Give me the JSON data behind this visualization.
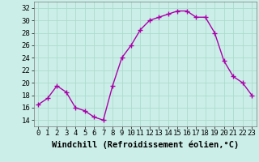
{
  "x": [
    0,
    1,
    2,
    3,
    4,
    5,
    6,
    7,
    8,
    9,
    10,
    11,
    12,
    13,
    14,
    15,
    16,
    17,
    18,
    19,
    20,
    21,
    22,
    23
  ],
  "y": [
    16.5,
    17.5,
    19.5,
    18.5,
    16.0,
    15.5,
    14.5,
    14.0,
    19.5,
    24.0,
    26.0,
    28.5,
    30.0,
    30.5,
    31.0,
    31.5,
    31.5,
    30.5,
    30.5,
    28.0,
    23.5,
    21.0,
    20.0,
    18.0
  ],
  "line_color": "#aa00aa",
  "marker": "+",
  "marker_size": 4,
  "marker_linewidth": 1.0,
  "bg_color": "#cceee8",
  "grid_color": "#aaddcc",
  "xlabel": "Windchill (Refroidissement éolien,°C)",
  "ylim": [
    13,
    33
  ],
  "yticks": [
    14,
    16,
    18,
    20,
    22,
    24,
    26,
    28,
    30,
    32
  ],
  "xlim": [
    -0.5,
    23.5
  ],
  "xticks": [
    0,
    1,
    2,
    3,
    4,
    5,
    6,
    7,
    8,
    9,
    10,
    11,
    12,
    13,
    14,
    15,
    16,
    17,
    18,
    19,
    20,
    21,
    22,
    23
  ],
  "xlabel_fontsize": 7.5,
  "tick_fontsize": 6.5,
  "line_width": 1.0
}
